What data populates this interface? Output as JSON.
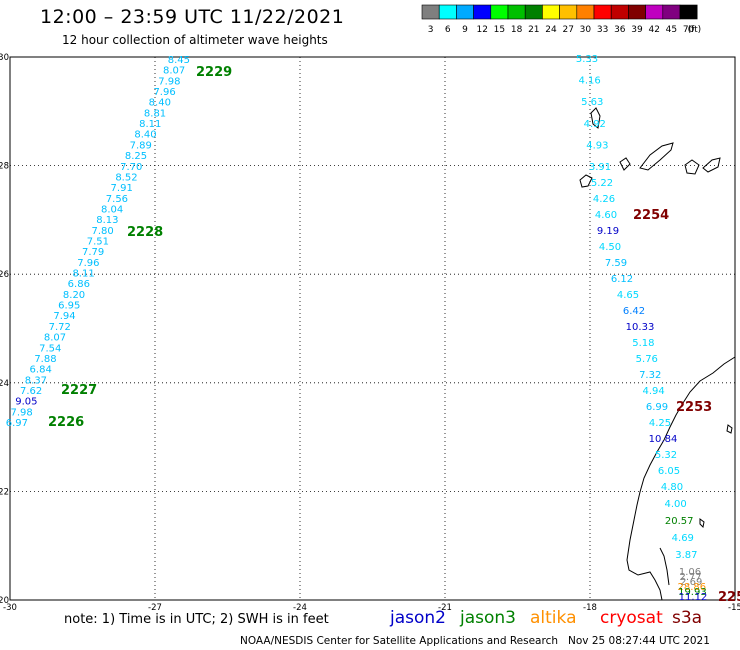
{
  "header": {
    "title": "12:00 – 23:59 UTC 11/22/2021",
    "subtitle": "12 hour collection of altimeter wave heights"
  },
  "colorbar": {
    "unit": "(ft)",
    "colors": [
      "#7f7f7f",
      "#00ffff",
      "#00aaff",
      "#0000ff",
      "#00ff00",
      "#00c000",
      "#008000",
      "#ffff00",
      "#ffc000",
      "#ff8000",
      "#ff0000",
      "#c00000",
      "#800000",
      "#c000c0",
      "#800080",
      "#000000"
    ],
    "labels": [
      "3",
      "6",
      "9",
      "12",
      "15",
      "18",
      "21",
      "24",
      "27",
      "30",
      "33",
      "36",
      "39",
      "42",
      "45",
      "70"
    ]
  },
  "map": {
    "lon_range": [
      -30,
      -15
    ],
    "lat_range": [
      20,
      30
    ],
    "lon_ticks": [
      "-30",
      "-27",
      "-24",
      "-21",
      "-18",
      "-15"
    ],
    "lat_ticks": [
      "30",
      "28",
      "26",
      "24",
      "22",
      "20"
    ]
  },
  "passes": [
    {
      "label": "2229",
      "color": "#008000"
    },
    {
      "label": "2228",
      "color": "#008000"
    },
    {
      "label": "2227",
      "color": "#008000"
    },
    {
      "label": "2226",
      "color": "#008000"
    },
    {
      "label": "2254",
      "color": "#800000"
    },
    {
      "label": "2253",
      "color": "#800000"
    },
    {
      "label": "225",
      "color": "#800000"
    }
  ],
  "track_west": [
    {
      "v": "8.45",
      "c": "#00bfff"
    },
    {
      "v": "8.07",
      "c": "#00bfff"
    },
    {
      "v": "7.98",
      "c": "#00bfff"
    },
    {
      "v": "7.96",
      "c": "#00bfff"
    },
    {
      "v": "8.40",
      "c": "#00bfff"
    },
    {
      "v": "8.81",
      "c": "#00bfff"
    },
    {
      "v": "8.11",
      "c": "#00bfff"
    },
    {
      "v": "8.40",
      "c": "#00bfff"
    },
    {
      "v": "7.89",
      "c": "#00bfff"
    },
    {
      "v": "8.25",
      "c": "#00bfff"
    },
    {
      "v": "7.70",
      "c": "#00bfff"
    },
    {
      "v": "8.52",
      "c": "#00bfff"
    },
    {
      "v": "7.91",
      "c": "#00bfff"
    },
    {
      "v": "7.56",
      "c": "#00bfff"
    },
    {
      "v": "8.04",
      "c": "#00bfff"
    },
    {
      "v": "8.13",
      "c": "#00bfff"
    },
    {
      "v": "7.80",
      "c": "#00bfff"
    },
    {
      "v": "7.51",
      "c": "#00bfff"
    },
    {
      "v": "7.79",
      "c": "#00bfff"
    },
    {
      "v": "7.96",
      "c": "#00bfff"
    },
    {
      "v": "8.11",
      "c": "#00bfff"
    },
    {
      "v": "6.86",
      "c": "#00bfff"
    },
    {
      "v": "8.20",
      "c": "#00bfff"
    },
    {
      "v": "6.95",
      "c": "#00bfff"
    },
    {
      "v": "7.94",
      "c": "#00bfff"
    },
    {
      "v": "7.72",
      "c": "#00bfff"
    },
    {
      "v": "8.07",
      "c": "#00bfff"
    },
    {
      "v": "7.54",
      "c": "#00bfff"
    },
    {
      "v": "7.88",
      "c": "#00bfff"
    },
    {
      "v": "6.84",
      "c": "#00bfff"
    },
    {
      "v": "8.37",
      "c": "#00bfff"
    },
    {
      "v": "7.62",
      "c": "#00bfff"
    },
    {
      "v": "9.05",
      "c": "#0000c8"
    },
    {
      "v": "7.98",
      "c": "#00bfff"
    },
    {
      "v": "6.97",
      "c": "#00bfff"
    }
  ],
  "track_east": [
    {
      "v": "5.33",
      "c": "#00d8ff"
    },
    {
      "v": "4.16",
      "c": "#00d8ff"
    },
    {
      "v": "5.63",
      "c": "#00d8ff"
    },
    {
      "v": "4.92",
      "c": "#00d8ff"
    },
    {
      "v": "4.93",
      "c": "#00d8ff"
    },
    {
      "v": "3.91",
      "c": "#00d8ff"
    },
    {
      "v": "5.22",
      "c": "#00d8ff"
    },
    {
      "v": "4.26",
      "c": "#00d8ff"
    },
    {
      "v": "4.60",
      "c": "#00d8ff"
    },
    {
      "v": "9.19",
      "c": "#0000c8"
    },
    {
      "v": "4.50",
      "c": "#00d8ff"
    },
    {
      "v": "7.59",
      "c": "#00bfff"
    },
    {
      "v": "6.12",
      "c": "#00bfff"
    },
    {
      "v": "4.65",
      "c": "#00d8ff"
    },
    {
      "v": "6.42",
      "c": "#0080ff"
    },
    {
      "v": "10.33",
      "c": "#0000c8"
    },
    {
      "v": "5.18",
      "c": "#00d8ff"
    },
    {
      "v": "5.76",
      "c": "#00d8ff"
    },
    {
      "v": "7.32",
      "c": "#00bfff"
    },
    {
      "v": "4.94",
      "c": "#00d8ff"
    },
    {
      "v": "6.99",
      "c": "#00bfff"
    },
    {
      "v": "4.25",
      "c": "#00d8ff"
    },
    {
      "v": "10.84",
      "c": "#0000c8"
    },
    {
      "v": "5.32",
      "c": "#00d8ff"
    },
    {
      "v": "6.05",
      "c": "#00d8ff"
    },
    {
      "v": "4.80",
      "c": "#00d8ff"
    },
    {
      "v": "4.00",
      "c": "#00d8ff"
    },
    {
      "v": "20.57",
      "c": "#008000"
    },
    {
      "v": "4.69",
      "c": "#00d8ff"
    },
    {
      "v": "3.87",
      "c": "#00d8ff"
    },
    {
      "v": "1.06",
      "c": "#7f7f7f"
    },
    {
      "v": "2.77",
      "c": "#7f7f7f"
    },
    {
      "v": "2.69",
      "c": "#7f7f7f"
    },
    {
      "v": "28.86",
      "c": "#ff9000"
    },
    {
      "v": "19.93",
      "c": "#008000"
    },
    {
      "v": "11.12",
      "c": "#0000c8"
    }
  ],
  "legend": {
    "satellites": [
      {
        "name": "jason2",
        "color": "#0000c8"
      },
      {
        "name": "jason3",
        "color": "#008000"
      },
      {
        "name": "altika",
        "color": "#ff9000"
      },
      {
        "name": "cryosat",
        "color": "#ff0000"
      },
      {
        "name": "s3a",
        "color": "#800000"
      }
    ],
    "note": "note: 1) Time is in UTC; 2) SWH is in feet",
    "credit": "NOAA/NESDIS Center for Satellite Applications and Research   Nov 25 08:27:44 UTC 2021"
  }
}
